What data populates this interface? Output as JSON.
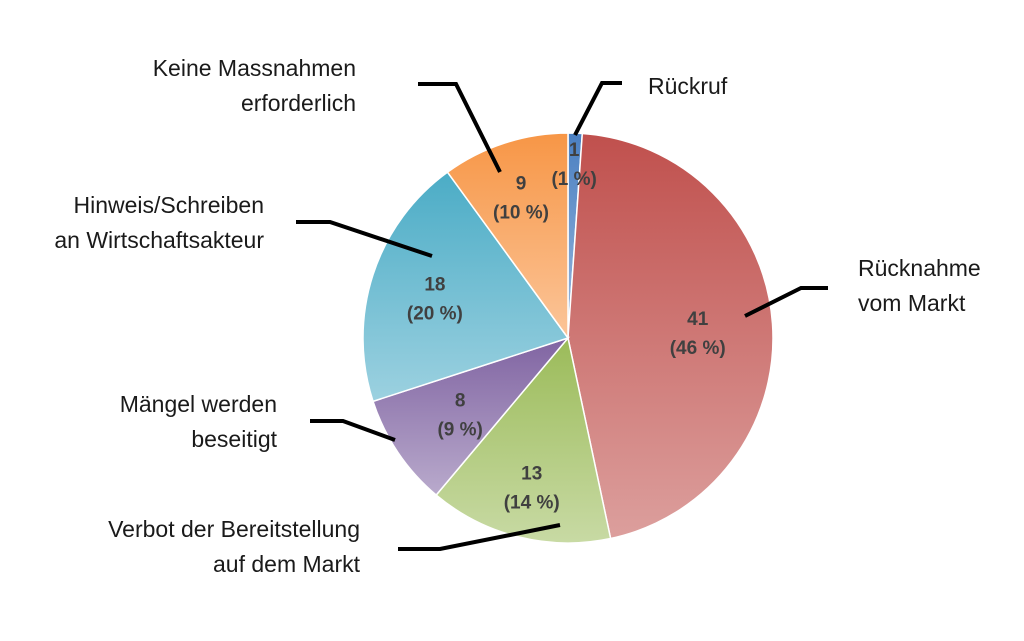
{
  "chart_data": {
    "type": "pie",
    "start_angle_deg": 0,
    "direction": "clockwise",
    "legend": "none",
    "slices": [
      {
        "category": "Rückruf",
        "value": 1,
        "percent_label": "(1 %)",
        "color": "#4a7fc1",
        "label_lines": [
          "Rückruf"
        ]
      },
      {
        "category": "Rücknahme vom Markt",
        "value": 41,
        "percent_label": "(46 %)",
        "color": "#c0504d",
        "label_lines": [
          "Rücknahme",
          "vom Markt"
        ]
      },
      {
        "category": "Verbot der Bereitstellung auf dem Markt",
        "value": 13,
        "percent_label": "(14 %)",
        "color": "#9bbb59",
        "label_lines": [
          "Verbot der Bereitstellung",
          "auf dem Markt"
        ]
      },
      {
        "category": "Mängel werden beseitigt",
        "value": 8,
        "percent_label": "(9 %)",
        "color": "#8064a2",
        "label_lines": [
          "Mängel werden",
          "beseitigt"
        ]
      },
      {
        "category": "Hinweis/Schreiben an Wirtschaftsakteur",
        "value": 18,
        "percent_label": "(20 %)",
        "color": "#4bacc6",
        "label_lines": [
          "Hinweis/Schreiben",
          "an Wirtschaftsakteur"
        ]
      },
      {
        "category": "Keine Massnahmen erforderlich",
        "value": 9,
        "percent_label": "(10 %)",
        "color": "#f79646",
        "label_lines": [
          "Keine Massnahmen",
          "erforderlich"
        ]
      }
    ]
  }
}
